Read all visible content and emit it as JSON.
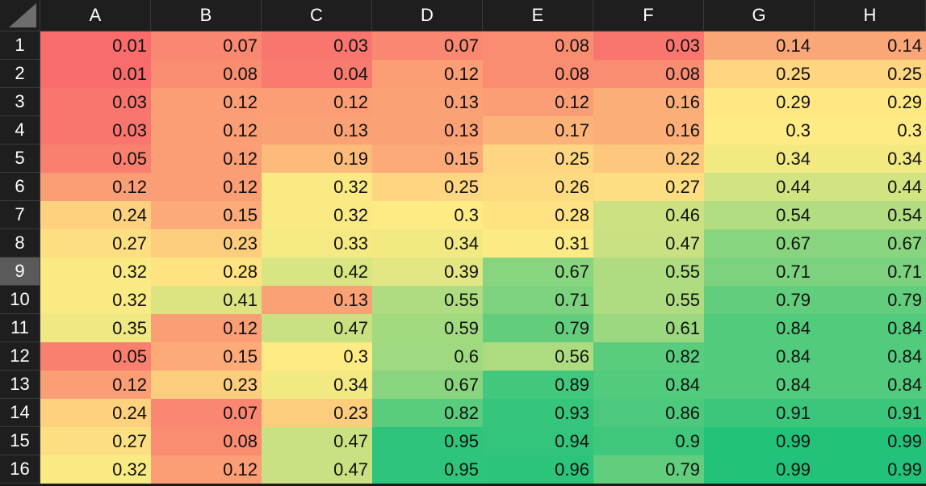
{
  "columns": [
    "A",
    "B",
    "C",
    "D",
    "E",
    "F",
    "G",
    "H"
  ],
  "rows": [
    {
      "label": "1",
      "values": [
        "0.01",
        "0.07",
        "0.03",
        "0.07",
        "0.08",
        "0.03",
        "0.14",
        "0.14"
      ]
    },
    {
      "label": "2",
      "values": [
        "0.01",
        "0.08",
        "0.04",
        "0.12",
        "0.08",
        "0.08",
        "0.25",
        "0.25"
      ]
    },
    {
      "label": "3",
      "values": [
        "0.03",
        "0.12",
        "0.12",
        "0.13",
        "0.12",
        "0.16",
        "0.29",
        "0.29"
      ]
    },
    {
      "label": "4",
      "values": [
        "0.03",
        "0.12",
        "0.13",
        "0.13",
        "0.17",
        "0.16",
        "0.3",
        "0.3"
      ]
    },
    {
      "label": "5",
      "values": [
        "0.05",
        "0.12",
        "0.19",
        "0.15",
        "0.25",
        "0.22",
        "0.34",
        "0.34"
      ]
    },
    {
      "label": "6",
      "values": [
        "0.12",
        "0.12",
        "0.32",
        "0.25",
        "0.26",
        "0.27",
        "0.44",
        "0.44"
      ]
    },
    {
      "label": "7",
      "values": [
        "0.24",
        "0.15",
        "0.32",
        "0.3",
        "0.28",
        "0.46",
        "0.54",
        "0.54"
      ]
    },
    {
      "label": "8",
      "values": [
        "0.27",
        "0.23",
        "0.33",
        "0.34",
        "0.31",
        "0.47",
        "0.67",
        "0.67"
      ]
    },
    {
      "label": "9",
      "values": [
        "0.32",
        "0.28",
        "0.42",
        "0.39",
        "0.67",
        "0.55",
        "0.71",
        "0.71"
      ]
    },
    {
      "label": "10",
      "values": [
        "0.32",
        "0.41",
        "0.13",
        "0.55",
        "0.71",
        "0.55",
        "0.79",
        "0.79"
      ]
    },
    {
      "label": "11",
      "values": [
        "0.35",
        "0.12",
        "0.47",
        "0.59",
        "0.79",
        "0.61",
        "0.84",
        "0.84"
      ]
    },
    {
      "label": "12",
      "values": [
        "0.05",
        "0.15",
        "0.3",
        "0.6",
        "0.56",
        "0.82",
        "0.84",
        "0.84"
      ]
    },
    {
      "label": "13",
      "values": [
        "0.12",
        "0.23",
        "0.34",
        "0.67",
        "0.89",
        "0.84",
        "0.84",
        "0.84"
      ]
    },
    {
      "label": "14",
      "values": [
        "0.24",
        "0.07",
        "0.23",
        "0.82",
        "0.93",
        "0.86",
        "0.91",
        "0.91"
      ]
    },
    {
      "label": "15",
      "values": [
        "0.27",
        "0.08",
        "0.47",
        "0.95",
        "0.94",
        "0.9",
        "0.99",
        "0.99"
      ]
    },
    {
      "label": "16",
      "values": [
        "0.32",
        "0.12",
        "0.47",
        "0.95",
        "0.96",
        "0.79",
        "0.99",
        "0.99"
      ]
    }
  ],
  "selected_row": "9",
  "color_scale": {
    "low": "#f8696b",
    "mid": "#ffeb84",
    "high": "#1fc17a"
  }
}
